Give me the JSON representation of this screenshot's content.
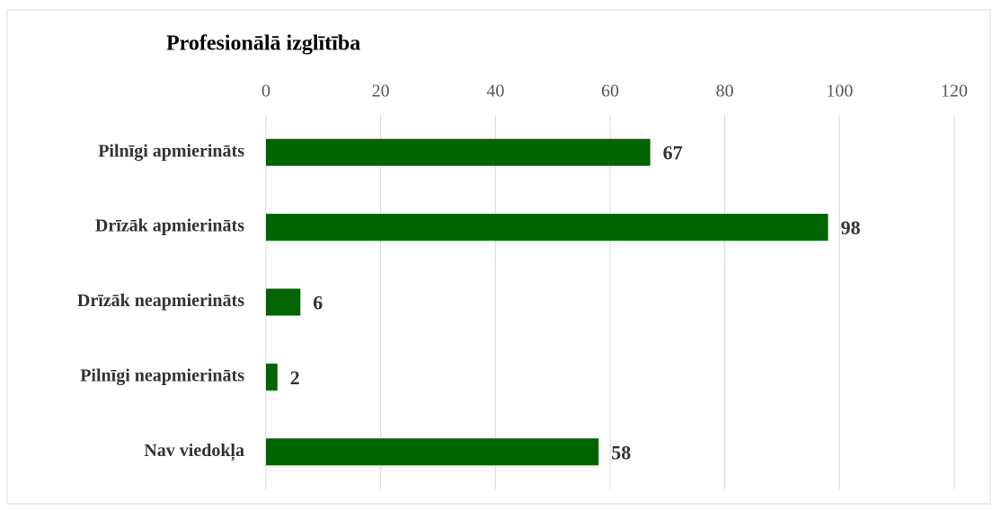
{
  "chart_data": {
    "type": "bar",
    "orientation": "horizontal",
    "title": "Profesionālā izglītība",
    "categories": [
      "Pilnīgi apmierināts",
      "Drīzāk apmierināts",
      "Drīzāk neapmierināts",
      "Pilnīgi neapmierināts",
      "Nav viedokļa"
    ],
    "values": [
      67,
      98,
      6,
      2,
      58
    ],
    "color": "#006400",
    "xlim": [
      0,
      120
    ],
    "xticks": [
      0,
      20,
      40,
      60,
      80,
      100,
      120
    ],
    "grid": true
  }
}
